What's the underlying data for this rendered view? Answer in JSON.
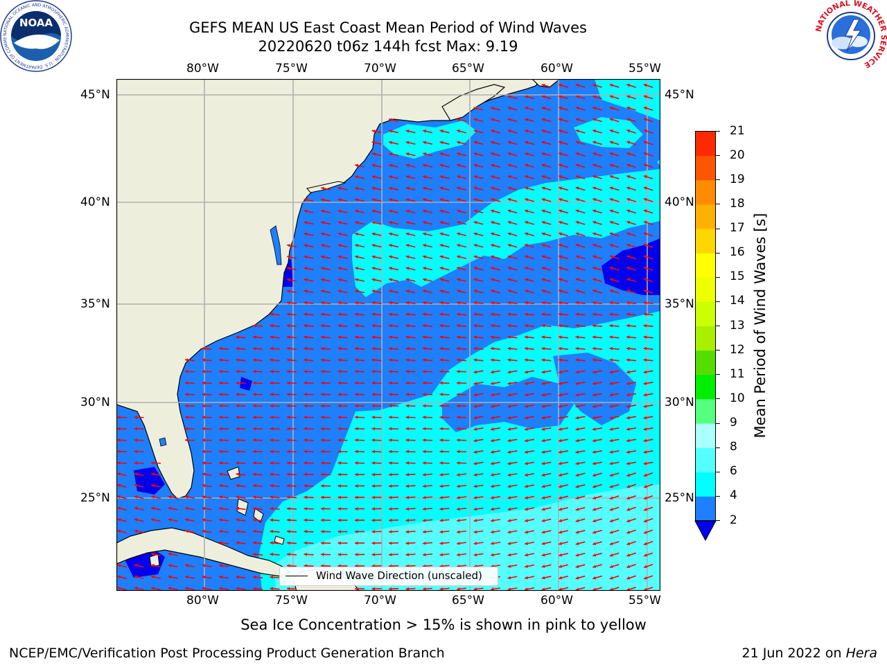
{
  "title": {
    "line1": "GEFS MEAN US East Coast Mean Period of Wind Waves",
    "line2": "20220620 t06z 144h fcst   Max: 9.19"
  },
  "logos": {
    "left_text": "NOAA",
    "left_ring": "NATIONAL OCEANIC AND ATMOSPHERIC ADMINISTRATION · U.S. DEPARTMENT OF COMMERCE",
    "right_ring": "NATIONAL WEATHER SERVICE"
  },
  "map": {
    "lon_labels": [
      "80°W",
      "75°W",
      "70°W",
      "65°W",
      "60°W",
      "55°W"
    ],
    "lat_labels": [
      "45°N",
      "40°N",
      "35°N",
      "30°N",
      "25°N"
    ],
    "lon_range": [
      -85,
      -54.3
    ],
    "lat_range": [
      20.5,
      45.8
    ],
    "colors": {
      "land": "#eeeedd",
      "ocean_2_4": "#1e7fff",
      "ocean_4_6": "#00ffff",
      "ocean_6_8": "#55ffff",
      "ocean_lt_2": "#0000ee",
      "grid": "#b0b0b0",
      "arrow": "#ff0000"
    },
    "legend_label": "Wind Wave Direction (unscaled)"
  },
  "colorbar": {
    "label": "Mean Period of Wind Waves [s]",
    "ticks": [
      "2",
      "4",
      "6",
      "8",
      "9",
      "10",
      "11",
      "12",
      "13",
      "14",
      "15",
      "16",
      "17",
      "18",
      "19",
      "20",
      "21"
    ],
    "colors": [
      "#1e7fff",
      "#00ffff",
      "#55ffff",
      "#aaffff",
      "#55ff80",
      "#00ee00",
      "#55dd00",
      "#aaee00",
      "#ccff00",
      "#eeff00",
      "#ffff00",
      "#ffd700",
      "#ffb000",
      "#ff8c00",
      "#ff5500",
      "#ff2a00",
      "#ff0000"
    ],
    "extend_color": "#0000ee"
  },
  "notes": {
    "ice": "Sea Ice Concentration > 15% is shown in pink to yellow"
  },
  "footer": {
    "left": "NCEP/EMC/Verification Post Processing Product Generation Branch",
    "right_date": "21 Jun 2022 on",
    "right_machine": "Hera"
  }
}
